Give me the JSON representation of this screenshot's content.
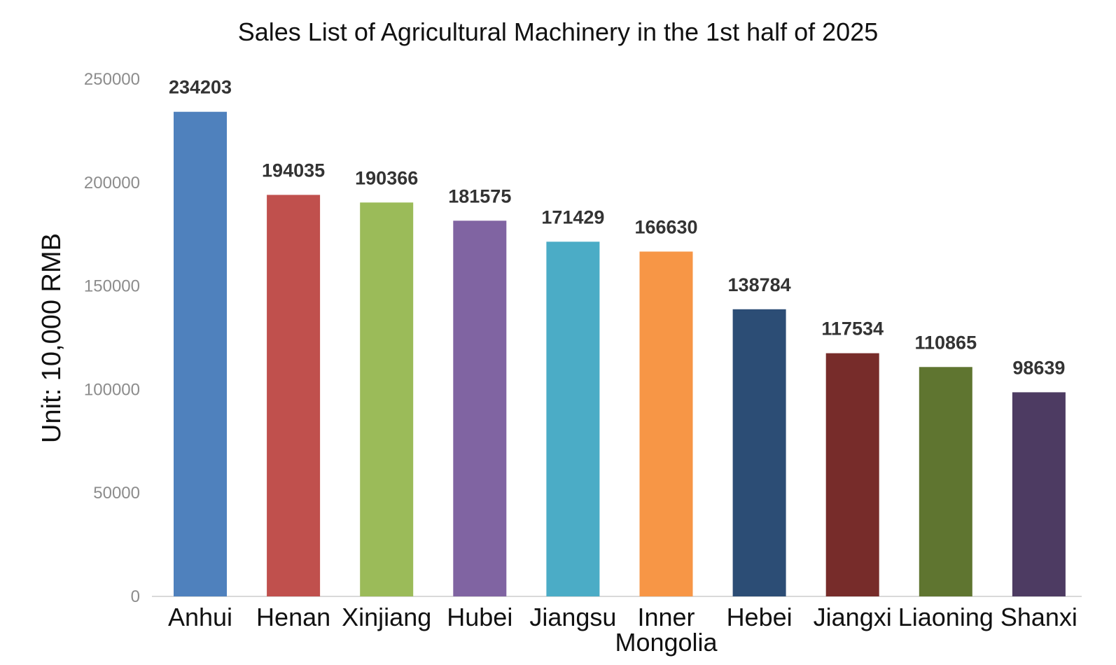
{
  "chart_data": {
    "type": "bar",
    "title": "Sales List of Agricultural Machinery in the 1st half of 2025",
    "xlabel": "",
    "ylabel": "Unit: 10,000 RMB",
    "categories": [
      "Anhui",
      "Henan",
      "Xinjiang",
      "Hubei",
      "Jiangsu",
      "Inner Mongolia",
      "Hebei",
      "Jiangxi",
      "Liaoning",
      "Shanxi"
    ],
    "category_label_lines": [
      [
        "Anhui"
      ],
      [
        "Henan"
      ],
      [
        "Xinjiang"
      ],
      [
        "Hubei"
      ],
      [
        "Jiangsu"
      ],
      [
        "Inner",
        "Mongolia"
      ],
      [
        "Hebei"
      ],
      [
        "Jiangxi"
      ],
      [
        "Liaoning"
      ],
      [
        "Shanxi"
      ]
    ],
    "values": [
      234203,
      194035,
      190366,
      181575,
      171429,
      166630,
      138784,
      117534,
      110865,
      98639
    ],
    "value_labels": [
      "234203",
      "194035",
      "190366",
      "181575",
      "171429",
      "166630",
      "138784",
      "117534",
      "110865",
      "98639"
    ],
    "ylim": [
      0,
      250000
    ],
    "yticks": [
      0,
      50000,
      100000,
      150000,
      200000,
      250000
    ],
    "ytick_labels": [
      "0",
      "50000",
      "100000",
      "150000",
      "200000",
      "250000"
    ],
    "colors": [
      "#4f81bd",
      "#c0504d",
      "#9bbb59",
      "#8064a2",
      "#4bacc6",
      "#f79646",
      "#2c4d75",
      "#772c2a",
      "#5f7530",
      "#4d3b62"
    ],
    "grid": false,
    "legend": "none"
  }
}
